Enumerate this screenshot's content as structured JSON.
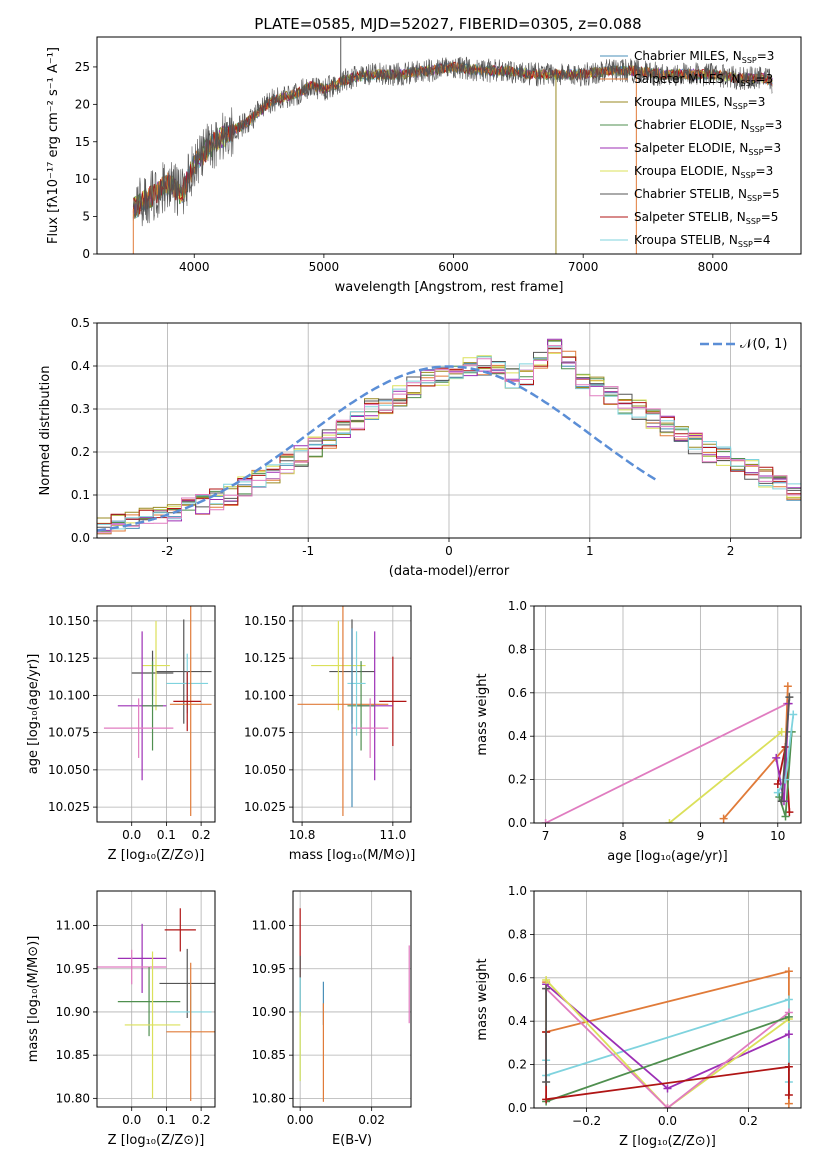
{
  "figure": {
    "title": "PLATE=0585, MJD=52027, FIBERID=0305, z=0.088"
  },
  "colors": {
    "chabrier_miles": "#4a8fb8",
    "salpeter_miles": "#e07b39",
    "kroupa_miles": "#9a8a22",
    "chabrier_elodie": "#4f8f4f",
    "salpeter_elodie": "#9c2fb5",
    "kroupa_elodie": "#dbe05a",
    "chabrier_stelib": "#555555",
    "salpeter_stelib": "#b01515",
    "kroupa_stelib": "#7fd3de",
    "pink": "#e07cc0",
    "normal_curve": "#5b8ed6",
    "grid": "#b0b0b0"
  },
  "chart_data": [
    {
      "id": "spectrum",
      "type": "line",
      "xlabel": "wavelength [Angstrom, rest frame]",
      "ylabel": "Flux [fλ10⁻¹⁷ erg cm⁻² s⁻¹ A⁻¹]",
      "xlim": [
        3250,
        8680
      ],
      "ylim": [
        0,
        29
      ],
      "xticks": [
        4000,
        5000,
        6000,
        7000,
        8000
      ],
      "yticks": [
        0,
        5,
        10,
        15,
        20,
        25
      ],
      "grid": false,
      "legend": "top-right",
      "continuum": {
        "x": [
          3530,
          3600,
          3700,
          3800,
          3900,
          4000,
          4100,
          4200,
          4300,
          4400,
          4500,
          4600,
          4700,
          4800,
          4900,
          5000,
          5200,
          5400,
          5600,
          5800,
          6000,
          6200,
          6400,
          6600,
          6800,
          7000,
          7200,
          7400,
          7600,
          7800,
          8000,
          8200,
          8400,
          8460
        ],
        "y": [
          6,
          7,
          8,
          9.5,
          8,
          12,
          14,
          15.5,
          16.5,
          17.5,
          19,
          20.5,
          21,
          21.5,
          22.5,
          22,
          23.5,
          24,
          24,
          24.5,
          25,
          24.5,
          24.5,
          24,
          24,
          24,
          24.5,
          24.5,
          24,
          24,
          24,
          23.5,
          23.5,
          23
        ]
      },
      "spikes": [
        {
          "x": 5130,
          "y": 29,
          "series": "Chabrier STELIB"
        },
        {
          "x": 6790,
          "y": 0,
          "series": "Kroupa MILES"
        },
        {
          "x": 7410,
          "y": 0,
          "series": "Salpeter MILES"
        },
        {
          "x": 3530,
          "y": 0,
          "series": "Salpeter MILES"
        }
      ],
      "series": [
        {
          "name": "Chabrier MILES",
          "name_base": "Chabrier MILES, N",
          "name_sub": "SSP",
          "name_tail": "=3",
          "color": "#4a8fb8"
        },
        {
          "name": "Salpeter MILES",
          "name_base": "Salpeter MILES, N",
          "name_sub": "SSP",
          "name_tail": "=3",
          "color": "#e07b39"
        },
        {
          "name": "Kroupa MILES",
          "name_base": "Kroupa MILES, N",
          "name_sub": "SSP",
          "name_tail": "=3",
          "color": "#9a8a22"
        },
        {
          "name": "Chabrier ELODIE",
          "name_base": "Chabrier ELODIE, N",
          "name_sub": "SSP",
          "name_tail": "=3",
          "color": "#4f8f4f"
        },
        {
          "name": "Salpeter ELODIE",
          "name_base": "Salpeter ELODIE, N",
          "name_sub": "SSP",
          "name_tail": "=3",
          "color": "#9c2fb5"
        },
        {
          "name": "Kroupa ELODIE",
          "name_base": "Kroupa ELODIE, N",
          "name_sub": "SSP",
          "name_tail": "=3",
          "color": "#dbe05a"
        },
        {
          "name": "Chabrier STELIB",
          "name_base": "Chabrier STELIB, N",
          "name_sub": "SSP",
          "name_tail": "=5",
          "color": "#555555"
        },
        {
          "name": "Salpeter STELIB",
          "name_base": "Salpeter STELIB, N",
          "name_sub": "SSP",
          "name_tail": "=5",
          "color": "#b01515"
        },
        {
          "name": "Kroupa STELIB",
          "name_base": "Kroupa STELIB, N",
          "name_sub": "SSP",
          "name_tail": "=4",
          "color": "#7fd3de"
        }
      ]
    },
    {
      "id": "residuals",
      "type": "histogram",
      "xlabel": "(data-model)/error",
      "ylabel": "Normed distribution",
      "xlim": [
        -2.5,
        2.5
      ],
      "ylim": [
        0,
        0.5
      ],
      "xticks": [
        -2,
        -1,
        0,
        1,
        2
      ],
      "yticks": [
        0.0,
        0.1,
        0.2,
        0.3,
        0.4,
        0.5
      ],
      "grid": true,
      "legend": "top-right",
      "legend_label": "𝒩(0, 1)",
      "bin_width": 0.1,
      "bins_start": -2.5,
      "base_values": [
        0.03,
        0.04,
        0.04,
        0.05,
        0.05,
        0.06,
        0.07,
        0.08,
        0.09,
        0.1,
        0.12,
        0.14,
        0.15,
        0.17,
        0.19,
        0.21,
        0.23,
        0.25,
        0.27,
        0.3,
        0.31,
        0.33,
        0.35,
        0.37,
        0.38,
        0.39,
        0.4,
        0.4,
        0.39,
        0.37,
        0.38,
        0.41,
        0.44,
        0.41,
        0.37,
        0.35,
        0.33,
        0.31,
        0.3,
        0.28,
        0.26,
        0.24,
        0.22,
        0.2,
        0.19,
        0.18,
        0.16,
        0.14,
        0.12,
        0.11,
        0.09,
        0.08,
        0.07,
        0.06,
        0.05,
        0.04,
        0.03,
        0.03
      ],
      "series_colors": [
        "#4a8fb8",
        "#e07b39",
        "#9a8a22",
        "#4f8f4f",
        "#9c2fb5",
        "#dbe05a",
        "#555555",
        "#b01515",
        "#7fd3de",
        "#e07cc0"
      ]
    },
    {
      "id": "age-vs-Z",
      "type": "errorbar",
      "xlabel": "Z [log₁₀(Z/Z⊙)]",
      "ylabel": "age  [log₁₀(age/yr)]",
      "xlim": [
        -0.1,
        0.24
      ],
      "ylim": [
        10.015,
        10.16
      ],
      "xticks": [
        0.0,
        0.1,
        0.2
      ],
      "xtick_labels": [
        "0.0",
        "0.1",
        "0.2"
      ],
      "yticks": [
        10.025,
        10.05,
        10.075,
        10.1,
        10.125,
        10.15
      ],
      "ytick_labels": [
        "10.025",
        "10.050",
        "10.075",
        "10.100",
        "10.125",
        "10.150"
      ],
      "grid": true,
      "points": [
        {
          "x": 0.15,
          "y": 10.116,
          "xerr": 0.08,
          "yerr": 0.035,
          "color": "#555555"
        },
        {
          "x": 0.06,
          "y": 10.115,
          "xerr": 0.06,
          "yerr": 0.015,
          "color": "#555555"
        },
        {
          "x": 0.07,
          "y": 10.12,
          "xerr": 0.04,
          "yerr": 0.03,
          "color": "#dbe05a"
        },
        {
          "x": 0.16,
          "y": 10.108,
          "xerr": 0.06,
          "yerr": 0.02,
          "color": "#7fd3de"
        },
        {
          "x": 0.17,
          "y": 10.094,
          "xerr": 0.06,
          "yerr": 0.075,
          "color": "#e07b39"
        },
        {
          "x": 0.16,
          "y": 10.096,
          "xerr": 0.04,
          "yerr": 0.02,
          "color": "#b01515"
        },
        {
          "x": 0.03,
          "y": 10.093,
          "xerr": 0.07,
          "yerr": 0.05,
          "color": "#9c2fb5"
        },
        {
          "x": 0.06,
          "y": 10.093,
          "xerr": 0.03,
          "yerr": 0.03,
          "color": "#4f8f4f"
        },
        {
          "x": 0.02,
          "y": 10.078,
          "xerr": 0.1,
          "yerr": 0.02,
          "color": "#e07cc0"
        }
      ]
    },
    {
      "id": "age-vs-mass",
      "type": "errorbar",
      "xlabel": "mass [log₁₀(M/M⊙)]",
      "ylabel": "",
      "xlim": [
        10.78,
        11.04
      ],
      "ylim": [
        10.015,
        10.16
      ],
      "xticks": [
        10.8,
        11.0
      ],
      "xtick_labels": [
        "10.8",
        "11.0"
      ],
      "yticks": [
        10.025,
        10.05,
        10.075,
        10.1,
        10.125,
        10.15
      ],
      "ytick_labels": [
        "10.025",
        "10.050",
        "10.075",
        "10.100",
        "10.125",
        "10.150"
      ],
      "grid": true,
      "points": [
        {
          "x": 10.91,
          "y": 10.116,
          "xerr": 0.05,
          "yerr": 0.035,
          "color": "#555555"
        },
        {
          "x": 10.88,
          "y": 10.12,
          "xerr": 0.06,
          "yerr": 0.03,
          "color": "#dbe05a"
        },
        {
          "x": 10.89,
          "y": 10.094,
          "xerr": 0.1,
          "yerr": 0.075,
          "color": "#e07b39"
        },
        {
          "x": 11.0,
          "y": 10.096,
          "xerr": 0.03,
          "yerr": 0.03,
          "color": "#b01515"
        },
        {
          "x": 10.96,
          "y": 10.093,
          "xerr": 0.04,
          "yerr": 0.05,
          "color": "#9c2fb5"
        },
        {
          "x": 10.93,
          "y": 10.093,
          "xerr": 0.03,
          "yerr": 0.03,
          "color": "#4f8f4f"
        },
        {
          "x": 10.95,
          "y": 10.078,
          "xerr": 0.04,
          "yerr": 0.02,
          "color": "#e07cc0"
        },
        {
          "x": 10.92,
          "y": 10.108,
          "xerr": 0.02,
          "yerr": 0.035,
          "color": "#7fd3de"
        },
        {
          "x": 10.91,
          "y": 10.085,
          "xerr": 0.0,
          "yerr": 0.06,
          "color": "#4a8fb8"
        }
      ]
    },
    {
      "id": "weight-vs-age",
      "type": "line",
      "xlabel": "age  [log₁₀(age/yr)]",
      "ylabel": "mass weight",
      "xlim": [
        6.85,
        10.3
      ],
      "ylim": [
        0,
        1.0
      ],
      "xticks": [
        7,
        8,
        9,
        10
      ],
      "yticks": [
        0.0,
        0.2,
        0.4,
        0.6,
        0.8,
        1.0
      ],
      "grid": true,
      "series": [
        {
          "color": "#e07cc0",
          "x": [
            7.0,
            10.12
          ],
          "y": [
            0.0,
            0.55
          ]
        },
        {
          "color": "#dbe05a",
          "x": [
            8.6,
            10.05
          ],
          "y": [
            0.0,
            0.42
          ]
        },
        {
          "color": "#e07b39",
          "x": [
            9.3,
            10.1,
            10.13
          ],
          "y": [
            0.02,
            0.35,
            0.63
          ]
        },
        {
          "color": "#b01515",
          "x": [
            10.0,
            10.1,
            10.15
          ],
          "y": [
            0.18,
            0.35,
            0.05
          ]
        },
        {
          "color": "#4f8f4f",
          "x": [
            10.02,
            10.1,
            10.18
          ],
          "y": [
            0.12,
            0.03,
            0.42
          ]
        },
        {
          "color": "#9c2fb5",
          "x": [
            9.98,
            10.08,
            10.14
          ],
          "y": [
            0.3,
            0.1,
            0.55
          ]
        },
        {
          "color": "#7fd3de",
          "x": [
            10.0,
            10.1,
            10.2
          ],
          "y": [
            0.14,
            0.2,
            0.5
          ]
        },
        {
          "color": "#555555",
          "x": [
            10.05,
            10.15
          ],
          "y": [
            0.1,
            0.58
          ]
        }
      ]
    },
    {
      "id": "mass-vs-Z",
      "type": "errorbar",
      "xlabel": "Z [log₁₀(Z/Z⊙)]",
      "ylabel": "mass [log₁₀(M/M⊙)]",
      "xlim": [
        -0.1,
        0.24
      ],
      "ylim": [
        10.79,
        11.04
      ],
      "xticks": [
        0.0,
        0.1,
        0.2
      ],
      "xtick_labels": [
        "0.0",
        "0.1",
        "0.2"
      ],
      "yticks": [
        10.8,
        10.85,
        10.9,
        10.95,
        11.0
      ],
      "ytick_labels": [
        "10.80",
        "10.85",
        "10.90",
        "10.95",
        "11.00"
      ],
      "grid": true,
      "points": [
        {
          "x": 0.14,
          "y": 10.995,
          "xerr": 0.045,
          "yerr": 0.025,
          "color": "#b01515"
        },
        {
          "x": 0.03,
          "y": 10.962,
          "xerr": 0.07,
          "yerr": 0.04,
          "color": "#9c2fb5"
        },
        {
          "x": 0.0,
          "y": 10.952,
          "xerr": 0.1,
          "yerr": 0.02,
          "color": "#e07cc0"
        },
        {
          "x": 0.16,
          "y": 10.933,
          "xerr": 0.08,
          "yerr": 0.04,
          "color": "#555555"
        },
        {
          "x": 0.05,
          "y": 10.912,
          "xerr": 0.09,
          "yerr": 0.04,
          "color": "#4f8f4f"
        },
        {
          "x": 0.17,
          "y": 10.9,
          "xerr": 0.06,
          "yerr": 0.03,
          "color": "#7fd3de"
        },
        {
          "x": 0.06,
          "y": 10.885,
          "xerr": 0.08,
          "yerr": 0.085,
          "color": "#dbe05a"
        },
        {
          "x": 0.17,
          "y": 10.877,
          "xerr": 0.07,
          "yerr": 0.08,
          "color": "#e07b39"
        }
      ]
    },
    {
      "id": "mass-vs-EBV",
      "type": "errorbar",
      "xlabel": "E(B-V)",
      "ylabel": "",
      "xlim": [
        -0.002,
        0.031
      ],
      "ylim": [
        10.79,
        11.04
      ],
      "xticks": [
        0.0,
        0.02
      ],
      "xtick_labels": [
        "0.00",
        "0.02"
      ],
      "yticks": [
        10.8,
        10.85,
        10.9,
        10.95,
        11.0
      ],
      "ytick_labels": [
        "10.80",
        "10.85",
        "10.90",
        "10.95",
        "11.00"
      ],
      "grid": true,
      "points": [
        {
          "x": 0.0,
          "y": 10.98,
          "xerr": 0,
          "yerr": 0.04,
          "color": "#b01515"
        },
        {
          "x": 0.0,
          "y": 10.93,
          "xerr": 0,
          "yerr": 0.035,
          "color": "#555555"
        },
        {
          "x": 0.0,
          "y": 10.88,
          "xerr": 0,
          "yerr": 0.06,
          "color": "#7fd3de"
        },
        {
          "x": 0.0,
          "y": 10.86,
          "xerr": 0,
          "yerr": 0.04,
          "color": "#dbe05a"
        },
        {
          "x": 0.0065,
          "y": 10.91,
          "xerr": 0,
          "yerr": 0.025,
          "color": "#4a8fb8"
        },
        {
          "x": 0.0065,
          "y": 10.853,
          "xerr": 0,
          "yerr": 0.057,
          "color": "#e07b39"
        },
        {
          "x": 0.0305,
          "y": 10.932,
          "xerr": 0,
          "yerr": 0.045,
          "color": "#e07cc0"
        }
      ]
    },
    {
      "id": "weight-vs-Z",
      "type": "line",
      "xlabel": "Z [log₁₀(Z/Z⊙)]",
      "ylabel": "mass weight",
      "xlim": [
        -0.33,
        0.33
      ],
      "ylim": [
        0,
        1.0
      ],
      "xticks": [
        -0.2,
        0.0,
        0.2
      ],
      "xtick_labels": [
        "−0.2",
        "0.0",
        "0.2"
      ],
      "yticks": [
        0.0,
        0.2,
        0.4,
        0.6,
        0.8,
        1.0
      ],
      "grid": true,
      "series": [
        {
          "color": "#e07b39",
          "x": [
            -0.3,
            -0.3,
            0.3,
            0.3
          ],
          "y": [
            0.58,
            0.35,
            0.63,
            0.02
          ]
        },
        {
          "color": "#7fd3de",
          "x": [
            -0.3,
            -0.3,
            0.3,
            0.3
          ],
          "y": [
            0.22,
            0.15,
            0.5,
            0.12
          ]
        },
        {
          "color": "#9c2fb5",
          "x": [
            -0.3,
            0.0,
            0.3
          ],
          "y": [
            0.57,
            0.09,
            0.34
          ]
        },
        {
          "color": "#dbe05a",
          "x": [
            -0.3,
            0.0,
            0.3
          ],
          "y": [
            0.59,
            0.0,
            0.41
          ]
        },
        {
          "color": "#e07cc0",
          "x": [
            -0.3,
            0.0,
            0.3
          ],
          "y": [
            0.55,
            0.0,
            0.44
          ]
        },
        {
          "color": "#4f8f4f",
          "x": [
            -0.3,
            0.3
          ],
          "y": [
            0.03,
            0.42
          ]
        },
        {
          "color": "#b01515",
          "x": [
            -0.3,
            -0.3,
            0.3,
            0.3
          ],
          "y": [
            0.35,
            0.04,
            0.19,
            0.06
          ]
        },
        {
          "color": "#555555",
          "x": [
            -0.3,
            -0.3
          ],
          "y": [
            0.12,
            0.55
          ]
        }
      ]
    }
  ]
}
